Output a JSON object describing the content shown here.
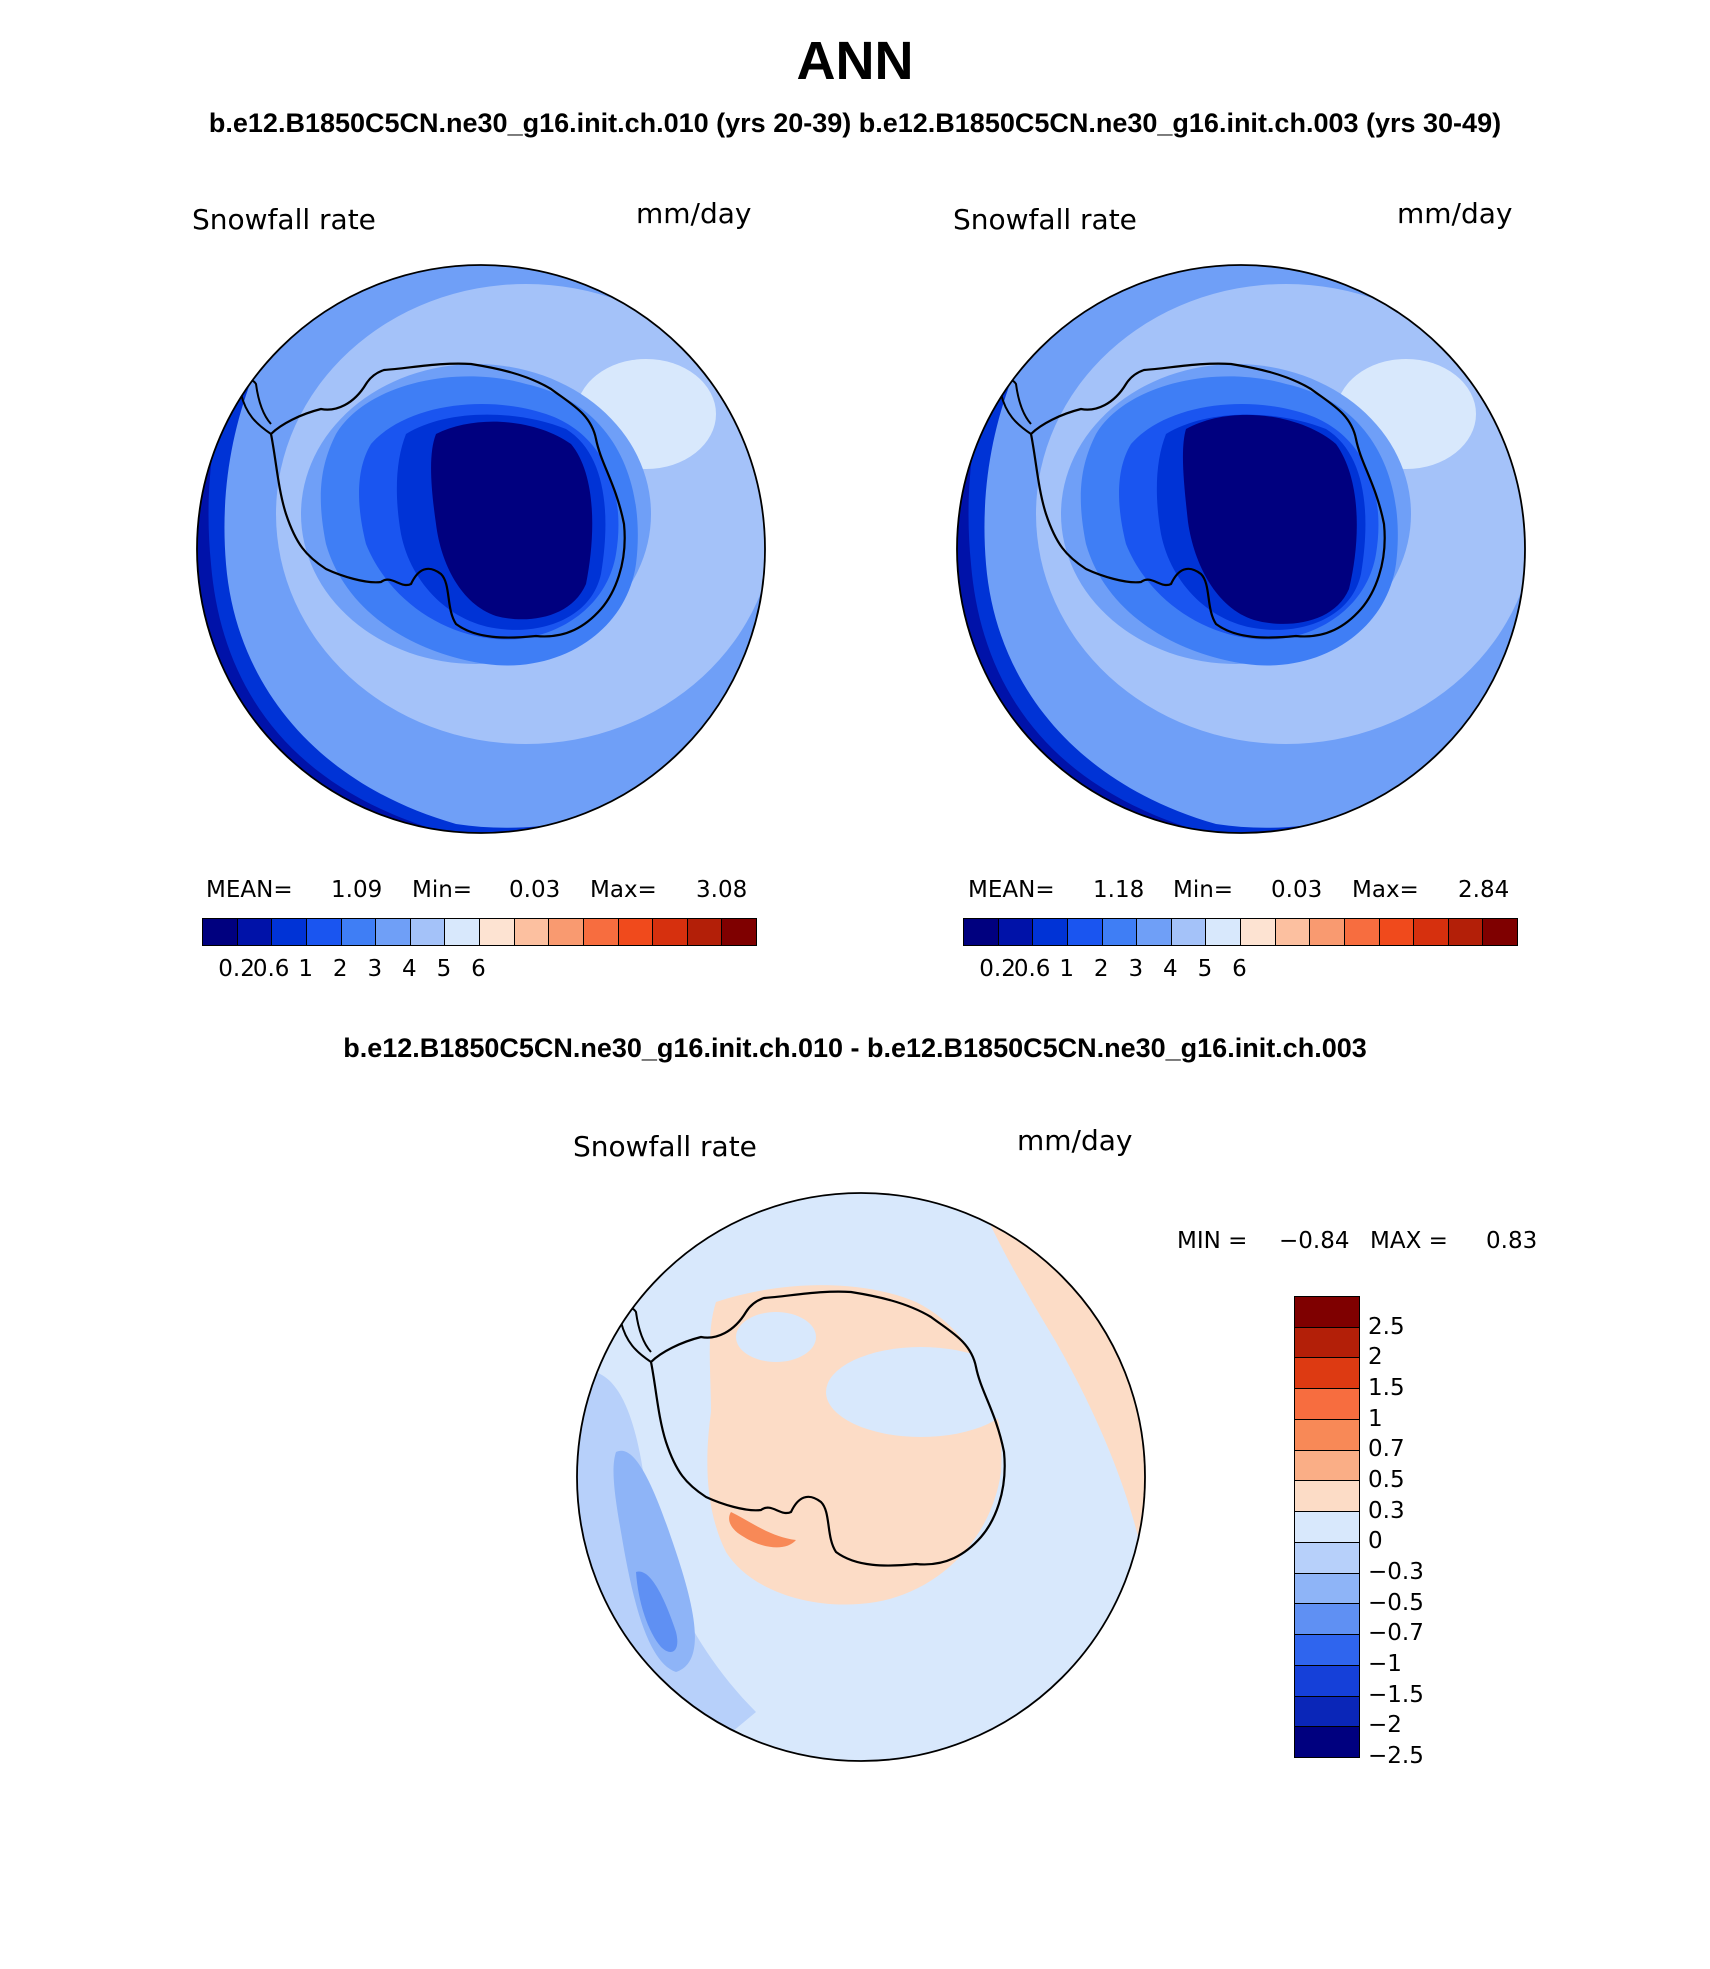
{
  "title": "ANN",
  "subtitle_top": "b.e12.B1850C5CN.ne30_g16.init.ch.010 (yrs 20-39)  b.e12.B1850C5CN.ne30_g16.init.ch.003 (yrs 30-49)",
  "subtitle_diff": "b.e12.B1850C5CN.ne30_g16.init.ch.010 - b.e12.B1850C5CN.ne30_g16.init.ch.003",
  "panels": [
    {
      "variable": "Snowfall rate",
      "units": "mm/day",
      "mean_label": "MEAN=",
      "mean": "1.09",
      "min_label": "Min=",
      "min": "0.03",
      "max_label": "Max=",
      "max": "3.08"
    },
    {
      "variable": "Snowfall rate",
      "units": "mm/day",
      "mean_label": "MEAN=",
      "mean": "1.18",
      "min_label": "Min=",
      "min": "0.03",
      "max_label": "Max=",
      "max": "2.84"
    }
  ],
  "diff_panel": {
    "variable": "Snowfall rate",
    "units": "mm/day",
    "min_label": "MIN =",
    "min": "−0.84",
    "max_label": "MAX =",
    "max": "0.83"
  },
  "abs_colorbar": {
    "colors": [
      "#00007f",
      "#0012a9",
      "#0033d6",
      "#1a55f0",
      "#3f7ef5",
      "#6f9ff7",
      "#a4c2f9",
      "#d8e8fc",
      "#fde3d2",
      "#fcc0a0",
      "#f99a70",
      "#f76d3f",
      "#f04a1c",
      "#d6300e",
      "#b31f08",
      "#7f0000"
    ],
    "tick_labels": [
      "0.2",
      "0.6",
      "1",
      "2",
      "3",
      "4",
      "5",
      "6"
    ]
  },
  "diff_colorbar": {
    "colors": [
      "#7f0000",
      "#b31f08",
      "#dd3a12",
      "#f76d3f",
      "#f88957",
      "#faae86",
      "#fcdcc6",
      "#d8e8fc",
      "#b7d0fa",
      "#8eb4f7",
      "#5f90f3",
      "#2f65ee",
      "#1540d9",
      "#0a26b8",
      "#00007f"
    ],
    "tick_labels": [
      "2.5",
      "2",
      "1.5",
      "1",
      "0.7",
      "0.5",
      "0.3",
      "0",
      "−0.3",
      "−0.5",
      "−0.7",
      "−1",
      "−1.5",
      "−2",
      "−2.5"
    ]
  }
}
